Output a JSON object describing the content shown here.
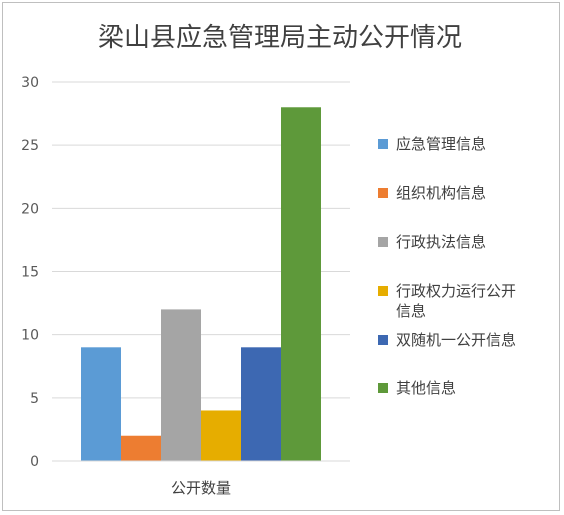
{
  "chart_data": {
    "type": "bar",
    "title": "梁山县应急管理局主动公开情况",
    "categories": [
      "公开数量"
    ],
    "series": [
      {
        "name": "应急管理信息",
        "values": [
          9
        ],
        "color": "#5B9BD5"
      },
      {
        "name": "组织机构信息",
        "values": [
          2
        ],
        "color": "#ED7D31"
      },
      {
        "name": "行政执法信息",
        "values": [
          12
        ],
        "color": "#A5A5A5"
      },
      {
        "name": "行政权力运行公开信息",
        "values": [
          4
        ],
        "color": "#E6AD00"
      },
      {
        "name": "双随机一公开信息",
        "values": [
          9
        ],
        "color": "#3D68B2"
      },
      {
        "name": "其他信息",
        "values": [
          28
        ],
        "color": "#5E993A"
      }
    ],
    "ylim": [
      0,
      30
    ],
    "yticks": [
      "0",
      "5",
      "10",
      "15",
      "20",
      "25",
      "30"
    ],
    "grid": true,
    "legend_position": "right",
    "legend_lines": [
      [
        "应急管理信息"
      ],
      [
        "组织机构信息"
      ],
      [
        "行政执法信息"
      ],
      [
        "行政权力运行公开",
        "信息"
      ],
      [
        "双随机一公开信息"
      ],
      [
        "其他信息"
      ]
    ]
  }
}
